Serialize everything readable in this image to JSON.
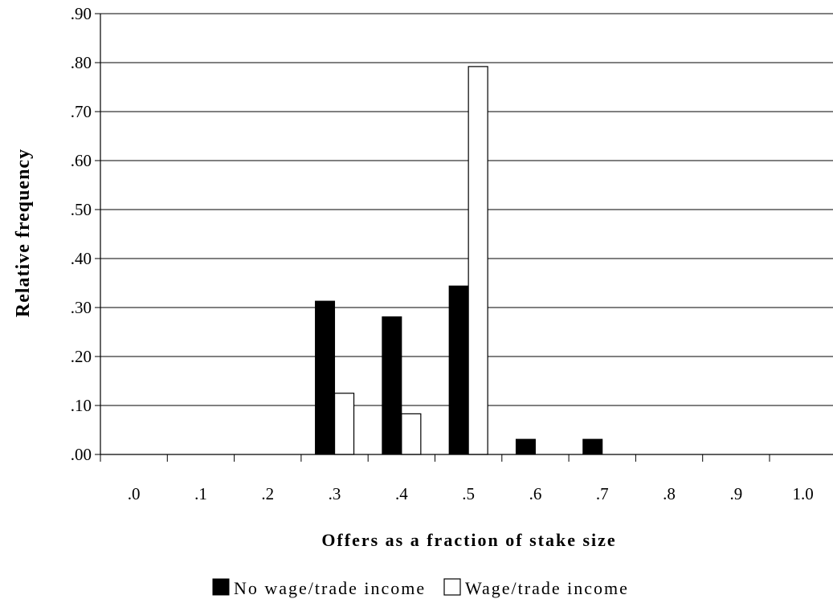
{
  "chart_data": {
    "type": "bar",
    "title": "",
    "xlabel": "Offers as a fraction of stake size",
    "ylabel": "Relative frequency",
    "categories": [
      ".0",
      ".1",
      ".2",
      ".3",
      ".4",
      ".5",
      ".6",
      ".7",
      ".8",
      ".9",
      "1.0"
    ],
    "yticks": [
      ".00",
      ".10",
      ".20",
      ".30",
      ".40",
      ".50",
      ".60",
      ".70",
      ".80",
      ".90"
    ],
    "ylim": [
      0,
      0.9
    ],
    "grid": "horizontal",
    "legend_position": "bottom",
    "series": [
      {
        "name": "No wage/trade income",
        "color": "#000000",
        "values": [
          0,
          0,
          0,
          0.313,
          0.281,
          0.344,
          0.031,
          0.031,
          0,
          0,
          0
        ]
      },
      {
        "name": "Wage/trade income",
        "color": "#ffffff",
        "values": [
          0,
          0,
          0,
          0.125,
          0.083,
          0.792,
          0,
          0,
          0,
          0,
          0
        ]
      }
    ]
  }
}
